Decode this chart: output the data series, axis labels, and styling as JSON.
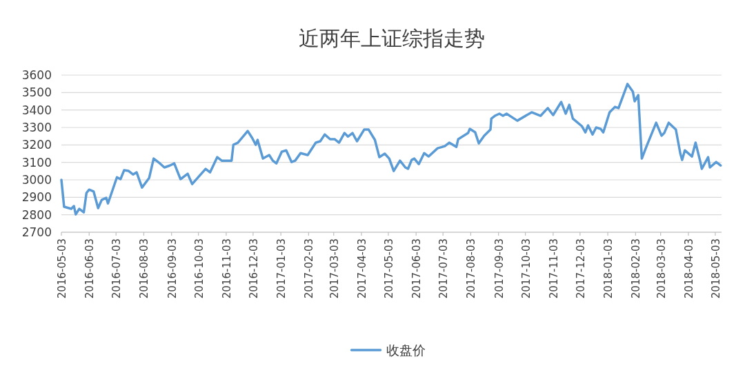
{
  "chart_data": {
    "type": "line",
    "title": "近两年上证综指走势",
    "legend": "bottom",
    "grid": "y",
    "xlim": [
      "2016-05-03",
      "2018-05-10"
    ],
    "ylim": [
      2700,
      3600
    ],
    "yticks": [
      2700,
      2800,
      2900,
      3000,
      3100,
      3200,
      3300,
      3400,
      3500,
      3600
    ],
    "xticks": [
      "2016-05-03",
      "2016-06-03",
      "2016-07-03",
      "2016-08-03",
      "2016-09-03",
      "2016-10-03",
      "2016-11-03",
      "2016-12-03",
      "2017-01-03",
      "2017-02-03",
      "2017-03-03",
      "2017-04-03",
      "2017-05-03",
      "2017-06-03",
      "2017-07-03",
      "2017-08-03",
      "2017-09-03",
      "2017-10-03",
      "2017-11-03",
      "2017-12-03",
      "2018-01-03",
      "2018-02-03",
      "2018-03-03",
      "2018-04-03",
      "2018-05-03"
    ],
    "x": [
      "2016-05-03",
      "2016-05-06",
      "2016-05-14",
      "2016-05-17",
      "2016-05-19",
      "2016-05-23",
      "2016-05-28",
      "2016-05-31",
      "2016-06-03",
      "2016-06-08",
      "2016-06-13",
      "2016-06-17",
      "2016-06-22",
      "2016-06-24",
      "2016-07-04",
      "2016-07-08",
      "2016-07-12",
      "2016-07-17",
      "2016-07-22",
      "2016-07-26",
      "2016-08-01",
      "2016-08-09",
      "2016-08-14",
      "2016-08-21",
      "2016-08-26",
      "2016-09-01",
      "2016-09-06",
      "2016-09-13",
      "2016-09-21",
      "2016-09-26",
      "2016-10-11",
      "2016-10-16",
      "2016-10-24",
      "2016-10-29",
      "2016-11-09",
      "2016-11-11",
      "2016-11-16",
      "2016-11-27",
      "2016-12-02",
      "2016-12-06",
      "2016-12-08",
      "2016-12-14",
      "2016-12-21",
      "2016-12-25",
      "2016-12-29",
      "2017-01-04",
      "2017-01-09",
      "2017-01-15",
      "2017-01-19",
      "2017-01-25",
      "2017-02-02",
      "2017-02-11",
      "2017-02-16",
      "2017-02-21",
      "2017-02-27",
      "2017-03-04",
      "2017-03-09",
      "2017-03-15",
      "2017-03-19",
      "2017-03-24",
      "2017-03-29",
      "2017-04-06",
      "2017-04-11",
      "2017-04-18",
      "2017-04-23",
      "2017-04-29",
      "2017-05-04",
      "2017-05-09",
      "2017-05-16",
      "2017-05-22",
      "2017-05-25",
      "2017-05-29",
      "2017-06-01",
      "2017-06-06",
      "2017-06-12",
      "2017-06-17",
      "2017-06-27",
      "2017-07-05",
      "2017-07-10",
      "2017-07-18",
      "2017-07-20",
      "2017-07-31",
      "2017-08-02",
      "2017-08-08",
      "2017-08-12",
      "2017-08-18",
      "2017-08-25",
      "2017-08-26",
      "2017-08-30",
      "2017-09-04",
      "2017-09-08",
      "2017-09-12",
      "2017-09-24",
      "2017-10-10",
      "2017-10-20",
      "2017-10-28",
      "2017-11-03",
      "2017-11-12",
      "2017-11-17",
      "2017-11-21",
      "2017-11-25",
      "2017-12-05",
      "2017-12-09",
      "2017-12-12",
      "2017-12-17",
      "2017-12-21",
      "2017-12-26",
      "2017-12-29",
      "2018-01-05",
      "2018-01-11",
      "2018-01-15",
      "2018-01-25",
      "2018-01-31",
      "2018-02-02",
      "2018-02-06",
      "2018-02-10",
      "2018-02-15",
      "2018-02-26",
      "2018-03-04",
      "2018-03-07",
      "2018-03-12",
      "2018-03-20",
      "2018-03-25",
      "2018-03-27",
      "2018-03-30",
      "2018-04-07",
      "2018-04-11",
      "2018-04-16",
      "2018-04-18",
      "2018-04-25",
      "2018-04-27",
      "2018-05-04",
      "2018-05-09"
    ],
    "series": [
      {
        "name": "收盘价",
        "color": "#5b9bd5",
        "values": [
          3000,
          2846,
          2834,
          2850,
          2802,
          2834,
          2814,
          2925,
          2944,
          2933,
          2838,
          2885,
          2897,
          2865,
          3015,
          3004,
          3055,
          3051,
          3031,
          3043,
          2956,
          3011,
          3122,
          3094,
          3071,
          3082,
          3094,
          3004,
          3035,
          2976,
          3063,
          3043,
          3130,
          3110,
          3110,
          3201,
          3213,
          3280,
          3240,
          3201,
          3229,
          3122,
          3142,
          3110,
          3094,
          3161,
          3169,
          3102,
          3110,
          3153,
          3142,
          3213,
          3221,
          3260,
          3233,
          3233,
          3213,
          3268,
          3248,
          3268,
          3221,
          3288,
          3288,
          3229,
          3130,
          3150,
          3122,
          3051,
          3110,
          3071,
          3063,
          3114,
          3122,
          3090,
          3153,
          3134,
          3181,
          3193,
          3213,
          3189,
          3233,
          3268,
          3292,
          3272,
          3209,
          3253,
          3288,
          3351,
          3367,
          3379,
          3367,
          3379,
          3339,
          3387,
          3367,
          3411,
          3371,
          3446,
          3379,
          3430,
          3351,
          3308,
          3272,
          3312,
          3260,
          3300,
          3292,
          3272,
          3387,
          3418,
          3411,
          3549,
          3505,
          3450,
          3485,
          3122,
          3189,
          3327,
          3253,
          3268,
          3327,
          3288,
          3150,
          3114,
          3169,
          3134,
          3213,
          3110,
          3063,
          3130,
          3071,
          3102,
          3082
        ]
      }
    ]
  }
}
